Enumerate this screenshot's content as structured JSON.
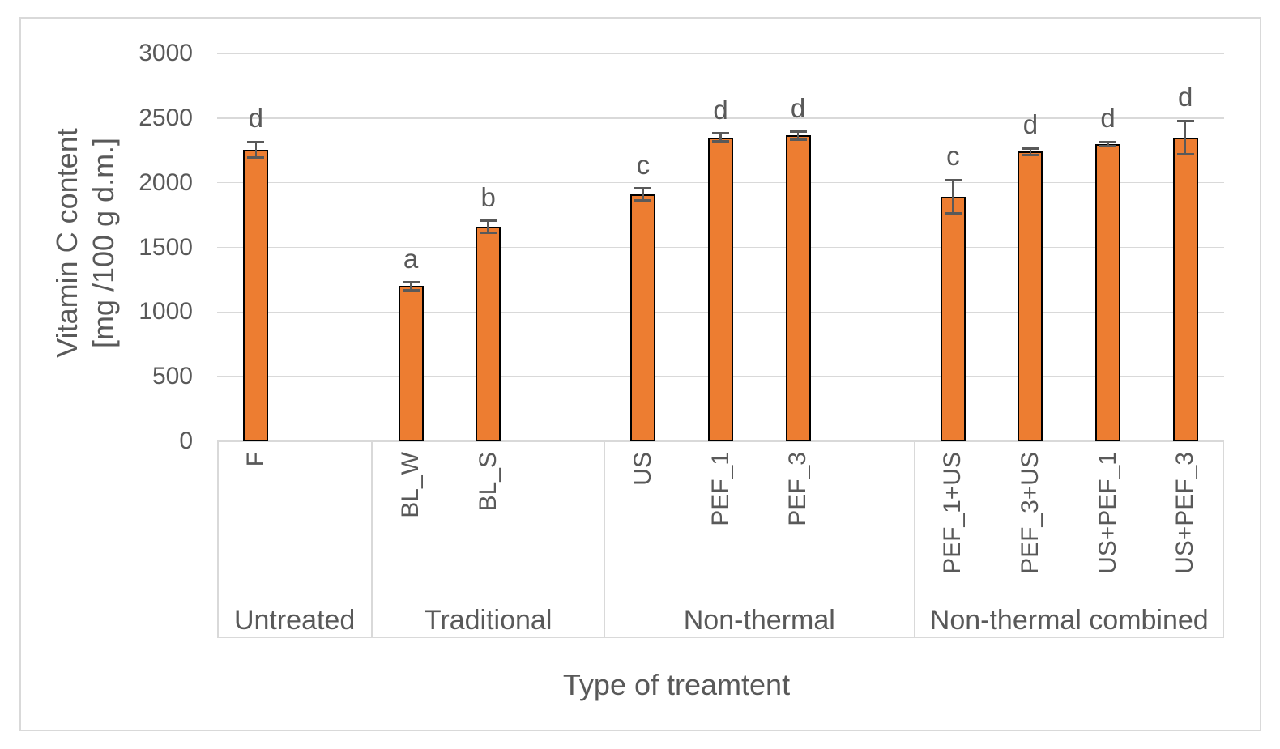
{
  "chart_data": {
    "type": "bar",
    "title": "",
    "xlabel": "Type of treamtent",
    "ylabel_line1": "Vitamin C content",
    "ylabel_line2": "[mg /100 g d.m.]",
    "ylim": [
      0,
      3000
    ],
    "yticks": [
      0,
      500,
      1000,
      1500,
      2000,
      2500,
      3000
    ],
    "grid": "horizontal-only",
    "legend": "none",
    "bar_fill_color": "#ED7D31",
    "bar_border_color": "#000000",
    "error_bar_color": "#595959",
    "text_color": "#595959",
    "gridline_color": "#D9D9D9",
    "frame_border_color": "#D9D9D9",
    "groups": [
      {
        "label": "Untreated",
        "bars": [
          {
            "label": "F",
            "value": 2255,
            "error": 60,
            "sig": "d"
          }
        ]
      },
      {
        "label": "Traditional",
        "bars": [
          {
            "label": "BL_W",
            "value": 1200,
            "error": 30,
            "sig": "a"
          },
          {
            "label": "BL_S",
            "value": 1660,
            "error": 45,
            "sig": "b"
          }
        ]
      },
      {
        "label": "Non-thermal",
        "bars": [
          {
            "label": "US",
            "value": 1910,
            "error": 45,
            "sig": "c"
          },
          {
            "label": "PEF_1",
            "value": 2350,
            "error": 30,
            "sig": "d"
          },
          {
            "label": "PEF_3",
            "value": 2365,
            "error": 30,
            "sig": "d"
          }
        ]
      },
      {
        "label": "Non-thermal combined",
        "bars": [
          {
            "label": "PEF_1+US",
            "value": 1890,
            "error": 130,
            "sig": "c"
          },
          {
            "label": "PEF_3+US",
            "value": 2240,
            "error": 25,
            "sig": "d"
          },
          {
            "label": "US+PEF_1",
            "value": 2300,
            "error": 15,
            "sig": "d"
          },
          {
            "label": "US+PEF_3",
            "value": 2350,
            "error": 130,
            "sig": "d"
          }
        ]
      }
    ]
  }
}
